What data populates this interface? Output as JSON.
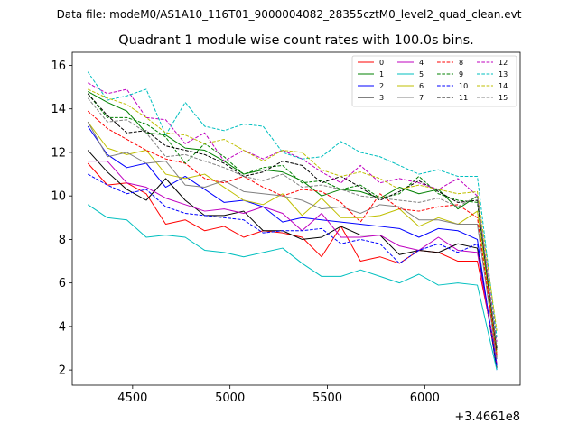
{
  "chart_data": {
    "type": "line",
    "suptitle": "Data file: modeM0/AS1A10_116T01_9000004082_28355cztM0_level2_quad_clean.evt",
    "title": "Quadrant 1 module wise count rates with 100.0s bins.",
    "xlabel": "",
    "ylabel": "",
    "x_offset_label": "+3.4661e8",
    "xlim": [
      4190,
      6490
    ],
    "ylim": [
      1.3,
      16.6
    ],
    "xticks": [
      4500,
      5000,
      5500,
      6000
    ],
    "xtick_labels": [
      "4500",
      "5000",
      "5500",
      "6000"
    ],
    "yticks": [
      2,
      4,
      6,
      8,
      10,
      12,
      14,
      16
    ],
    "ytick_labels": [
      "2",
      "4",
      "6",
      "8",
      "10",
      "12",
      "14",
      "16"
    ],
    "x": [
      4270,
      4370,
      4470,
      4570,
      4670,
      4770,
      4870,
      4970,
      5070,
      5170,
      5270,
      5370,
      5470,
      5570,
      5670,
      5770,
      5870,
      5970,
      6070,
      6170,
      6270,
      6370
    ],
    "series": [
      {
        "name": "0",
        "color": "#ff0000",
        "dash": false,
        "values": [
          11.5,
          10.5,
          10.6,
          10.1,
          8.7,
          8.9,
          8.4,
          8.6,
          8.1,
          8.4,
          8.3,
          8.1,
          7.2,
          8.6,
          7.0,
          7.2,
          6.9,
          7.5,
          7.4,
          7.0,
          7.0,
          2.6
        ]
      },
      {
        "name": "1",
        "color": "#008000",
        "dash": false,
        "values": [
          14.8,
          14.3,
          13.9,
          12.9,
          12.8,
          12.2,
          12.1,
          11.6,
          11.0,
          11.2,
          11.1,
          10.7,
          10.0,
          10.3,
          10.2,
          9.9,
          10.4,
          10.1,
          10.3,
          9.4,
          10.0,
          2.5
        ]
      },
      {
        "name": "2",
        "color": "#0000ff",
        "dash": false,
        "values": [
          13.2,
          11.9,
          11.3,
          11.5,
          10.4,
          10.9,
          10.3,
          9.7,
          9.8,
          9.5,
          8.8,
          9.0,
          8.9,
          8.8,
          8.7,
          8.6,
          8.5,
          8.1,
          8.5,
          8.4,
          8.0,
          2.0
        ]
      },
      {
        "name": "3",
        "color": "#000000",
        "dash": false,
        "values": [
          12.1,
          11.1,
          10.3,
          9.8,
          10.8,
          9.8,
          9.1,
          9.1,
          9.3,
          8.4,
          8.4,
          8.0,
          8.1,
          8.6,
          8.2,
          8.2,
          7.3,
          7.5,
          7.4,
          7.8,
          7.6,
          2.1
        ]
      },
      {
        "name": "4",
        "color": "#bf00bf",
        "dash": false,
        "values": [
          11.6,
          11.6,
          10.6,
          10.4,
          9.9,
          9.6,
          9.3,
          9.4,
          9.2,
          9.5,
          9.2,
          8.4,
          9.2,
          8.1,
          8.1,
          8.2,
          7.7,
          7.5,
          8.1,
          7.5,
          7.4,
          2.3
        ]
      },
      {
        "name": "5",
        "color": "#00bfbf",
        "dash": false,
        "values": [
          9.6,
          9.0,
          8.9,
          8.1,
          8.2,
          8.1,
          7.5,
          7.4,
          7.2,
          7.4,
          7.6,
          6.9,
          6.3,
          6.3,
          6.6,
          6.3,
          6.0,
          6.4,
          5.9,
          6.0,
          5.9,
          2.0
        ]
      },
      {
        "name": "6",
        "color": "#bfbf00",
        "dash": false,
        "values": [
          13.4,
          12.2,
          11.9,
          12.1,
          11.0,
          10.8,
          11.0,
          10.4,
          9.8,
          9.6,
          10.1,
          9.1,
          9.9,
          9.0,
          9.0,
          9.1,
          9.4,
          8.6,
          9.0,
          8.7,
          9.3,
          2.8
        ]
      },
      {
        "name": "7",
        "color": "#808080",
        "dash": false,
        "values": [
          13.4,
          11.8,
          12.0,
          11.5,
          11.6,
          10.5,
          10.4,
          10.7,
          10.2,
          10.1,
          10.0,
          9.8,
          9.4,
          9.5,
          9.2,
          9.6,
          9.5,
          8.9,
          8.9,
          8.7,
          8.7,
          2.5
        ]
      },
      {
        "name": "8",
        "color": "#ff0000",
        "dash": true,
        "values": [
          13.9,
          13.1,
          12.6,
          12.1,
          11.7,
          11.5,
          10.8,
          10.6,
          10.9,
          10.4,
          10.0,
          10.3,
          10.2,
          9.7,
          8.8,
          10.1,
          9.4,
          9.3,
          9.5,
          9.6,
          9.0,
          2.7
        ]
      },
      {
        "name": "9",
        "color": "#008000",
        "dash": true,
        "values": [
          14.7,
          13.6,
          13.6,
          13.3,
          12.7,
          11.5,
          12.4,
          11.8,
          11.0,
          11.3,
          11.4,
          10.6,
          10.7,
          10.3,
          10.5,
          9.9,
          10.1,
          10.9,
          10.1,
          9.8,
          9.7,
          2.9
        ]
      },
      {
        "name": "10",
        "color": "#0000ff",
        "dash": true,
        "values": [
          11.0,
          10.5,
          10.1,
          10.3,
          9.5,
          9.2,
          9.1,
          9.0,
          8.9,
          8.3,
          8.4,
          8.4,
          8.5,
          7.8,
          8.0,
          7.8,
          6.9,
          7.5,
          7.8,
          7.4,
          7.8,
          2.2
        ]
      },
      {
        "name": "11",
        "color": "#000000",
        "dash": true,
        "values": [
          14.7,
          13.7,
          12.9,
          13.0,
          12.3,
          12.1,
          11.9,
          11.5,
          10.9,
          11.1,
          11.6,
          11.4,
          10.6,
          10.9,
          10.4,
          9.8,
          10.2,
          10.7,
          10.2,
          9.7,
          9.8,
          3.0
        ]
      },
      {
        "name": "12",
        "color": "#bf00bf",
        "dash": true,
        "values": [
          15.2,
          14.7,
          14.9,
          13.6,
          13.5,
          12.4,
          12.9,
          11.6,
          12.1,
          11.7,
          12.1,
          11.7,
          11.1,
          10.6,
          11.4,
          10.6,
          10.8,
          10.6,
          10.3,
          10.8,
          10.0,
          3.3
        ]
      },
      {
        "name": "13",
        "color": "#00bfbf",
        "dash": true,
        "values": [
          15.7,
          14.4,
          14.6,
          14.9,
          12.8,
          14.3,
          13.2,
          13.0,
          13.3,
          13.2,
          12.0,
          11.7,
          11.8,
          12.5,
          12.0,
          11.8,
          11.4,
          11.0,
          11.2,
          10.9,
          10.9,
          3.5
        ]
      },
      {
        "name": "14",
        "color": "#bfbf00",
        "dash": true,
        "values": [
          14.9,
          14.5,
          14.2,
          13.6,
          12.9,
          12.8,
          12.4,
          12.6,
          12.1,
          11.6,
          12.1,
          12.0,
          11.2,
          10.9,
          11.1,
          10.8,
          10.3,
          10.5,
          10.3,
          10.1,
          10.2,
          3.8
        ]
      },
      {
        "name": "15",
        "color": "#808080",
        "dash": true,
        "values": [
          14.5,
          13.4,
          13.5,
          12.9,
          11.8,
          11.9,
          11.6,
          11.3,
          10.9,
          10.7,
          11.0,
          10.4,
          10.5,
          10.3,
          10.0,
          9.9,
          9.8,
          9.7,
          9.9,
          9.5,
          10.0,
          3.1
        ]
      }
    ]
  }
}
